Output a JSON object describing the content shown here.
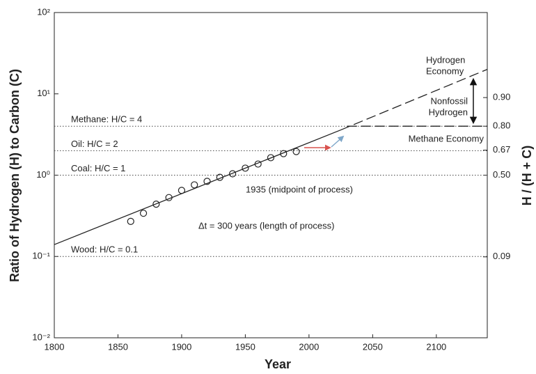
{
  "chart_data": {
    "type": "scatter",
    "x_label": "Year",
    "y_label": "Ratio of Hydrogen (H) to Carbon (C)",
    "y2_label": "H / (H + C)",
    "xlim": [
      1800,
      2140
    ],
    "xticks": [
      1800,
      1850,
      1900,
      1950,
      2000,
      2050,
      2100
    ],
    "ylim": [
      0.01,
      100
    ],
    "yscale": "log",
    "yticks": [
      {
        "value": 0.01,
        "label": "10⁻²"
      },
      {
        "value": 0.1,
        "label": "10⁻¹"
      },
      {
        "value": 1,
        "label": "10⁰"
      },
      {
        "value": 10,
        "label": "10¹"
      },
      {
        "value": 100,
        "label": "10²"
      }
    ],
    "y2scale": "fraction",
    "y2ticks": [
      {
        "value": 0.9,
        "label": "0.90"
      },
      {
        "value": 0.8,
        "label": "0.80"
      },
      {
        "value": 0.67,
        "label": "0.67"
      },
      {
        "value": 0.5,
        "label": "0.50"
      },
      {
        "value": 0.09,
        "label": "0.09"
      }
    ],
    "grid": false,
    "series": [
      {
        "style": "circle",
        "color": "#222222",
        "x": [
          1860,
          1870,
          1880,
          1890,
          1900,
          1910,
          1920,
          1930,
          1940,
          1950,
          1960,
          1970,
          1980,
          1990
        ],
        "values": [
          0.27,
          0.34,
          0.44,
          0.53,
          0.65,
          0.76,
          0.84,
          0.94,
          1.04,
          1.22,
          1.37,
          1.64,
          1.84,
          1.95
        ]
      },
      {
        "style": "solid",
        "color": "#222222",
        "x": [
          1800,
          2025
        ],
        "values": [
          0.14,
          3.6
        ]
      },
      {
        "style": "dashed",
        "color": "#222222",
        "x": [
          2025,
          2140
        ],
        "values": [
          3.6,
          20
        ]
      },
      {
        "style": "dashed",
        "color": "#222222",
        "x": [
          2030,
          2140
        ],
        "values": [
          4,
          4
        ]
      }
    ],
    "reference_lines": [
      {
        "value": 4,
        "label": "Methane: H/C = 4"
      },
      {
        "value": 2,
        "label": "Oil: H/C = 2"
      },
      {
        "value": 1,
        "label": "Coal: H/C = 1"
      },
      {
        "value": 0.1,
        "label": "Wood: H/C = 0.1"
      }
    ],
    "annotations": [
      [
        "Hydrogen",
        "Economy"
      ],
      [
        "Nonfossil",
        "Hydrogen"
      ],
      [
        "Methane Economy"
      ],
      [
        "1935 (midpoint of process)"
      ],
      [
        "Δt = 300 years (length of process)"
      ]
    ]
  }
}
